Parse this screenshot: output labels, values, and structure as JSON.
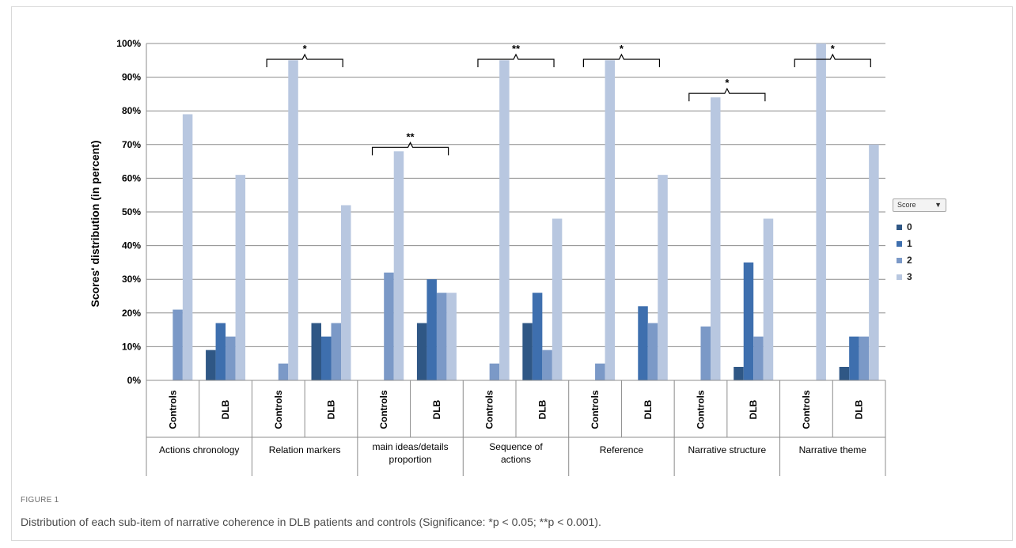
{
  "figure": {
    "label": "FIGURE 1",
    "caption": "Distribution of each sub-item of narrative coherence in DLB patients and controls (Significance: *p < 0.05; **p < 0.001)."
  },
  "legend": {
    "title": "Score",
    "dropdown_icon": "dropdown-arrow-icon",
    "items": [
      "0",
      "1",
      "2",
      "3"
    ]
  },
  "colors": {
    "0": "#2f5785",
    "1": "#3e6fae",
    "2": "#7b99c7",
    "3": "#b8c7e0"
  },
  "chart_data": {
    "type": "bar",
    "ylabel": "Scores' distribution (in percent)",
    "ylim": [
      0,
      100
    ],
    "yticks": [
      "0%",
      "10%",
      "20%",
      "30%",
      "40%",
      "50%",
      "60%",
      "70%",
      "80%",
      "90%",
      "100%"
    ],
    "grid": true,
    "legend_position": "right",
    "series_names": [
      "0",
      "1",
      "2",
      "3"
    ],
    "groups": [
      {
        "name": "Actions chronology",
        "name_lines": [
          "Actions chronology"
        ],
        "significance": "",
        "subgroups": [
          {
            "label": "Controls",
            "values": [
              0,
              0,
              21,
              79
            ]
          },
          {
            "label": "DLB",
            "values": [
              9,
              17,
              13,
              61
            ]
          }
        ]
      },
      {
        "name": "Relation markers",
        "name_lines": [
          "Relation markers"
        ],
        "significance": "*",
        "subgroups": [
          {
            "label": "Controls",
            "values": [
              0,
              0,
              5,
              95
            ]
          },
          {
            "label": "DLB",
            "values": [
              17,
              13,
              17,
              52
            ]
          }
        ]
      },
      {
        "name": "main ideas/details proportion",
        "name_lines": [
          "main ideas/details",
          "proportion"
        ],
        "significance": "**",
        "subgroups": [
          {
            "label": "Controls",
            "values": [
              0,
              0,
              32,
              68
            ]
          },
          {
            "label": "DLB",
            "values": [
              17,
              30,
              26,
              26
            ]
          }
        ]
      },
      {
        "name": "Sequence of actions",
        "name_lines": [
          "Sequence of",
          "actions"
        ],
        "significance": "**",
        "subgroups": [
          {
            "label": "Controls",
            "values": [
              0,
              0,
              5,
              95
            ]
          },
          {
            "label": "DLB",
            "values": [
              17,
              26,
              9,
              48
            ]
          }
        ]
      },
      {
        "name": "Reference",
        "name_lines": [
          "Reference"
        ],
        "significance": "*",
        "subgroups": [
          {
            "label": "Controls",
            "values": [
              0,
              0,
              5,
              95
            ]
          },
          {
            "label": "DLB",
            "values": [
              0,
              22,
              17,
              61
            ]
          }
        ]
      },
      {
        "name": "Narrative structure",
        "name_lines": [
          "Narrative structure"
        ],
        "significance": "*",
        "subgroups": [
          {
            "label": "Controls",
            "values": [
              0,
              0,
              16,
              84
            ]
          },
          {
            "label": "DLB",
            "values": [
              4,
              35,
              13,
              48
            ]
          }
        ]
      },
      {
        "name": "Narrative theme",
        "name_lines": [
          "Narrative theme"
        ],
        "significance": "*",
        "subgroups": [
          {
            "label": "Controls",
            "values": [
              0,
              0,
              0,
              100
            ]
          },
          {
            "label": "DLB",
            "values": [
              4,
              13,
              13,
              70
            ]
          }
        ]
      }
    ]
  }
}
